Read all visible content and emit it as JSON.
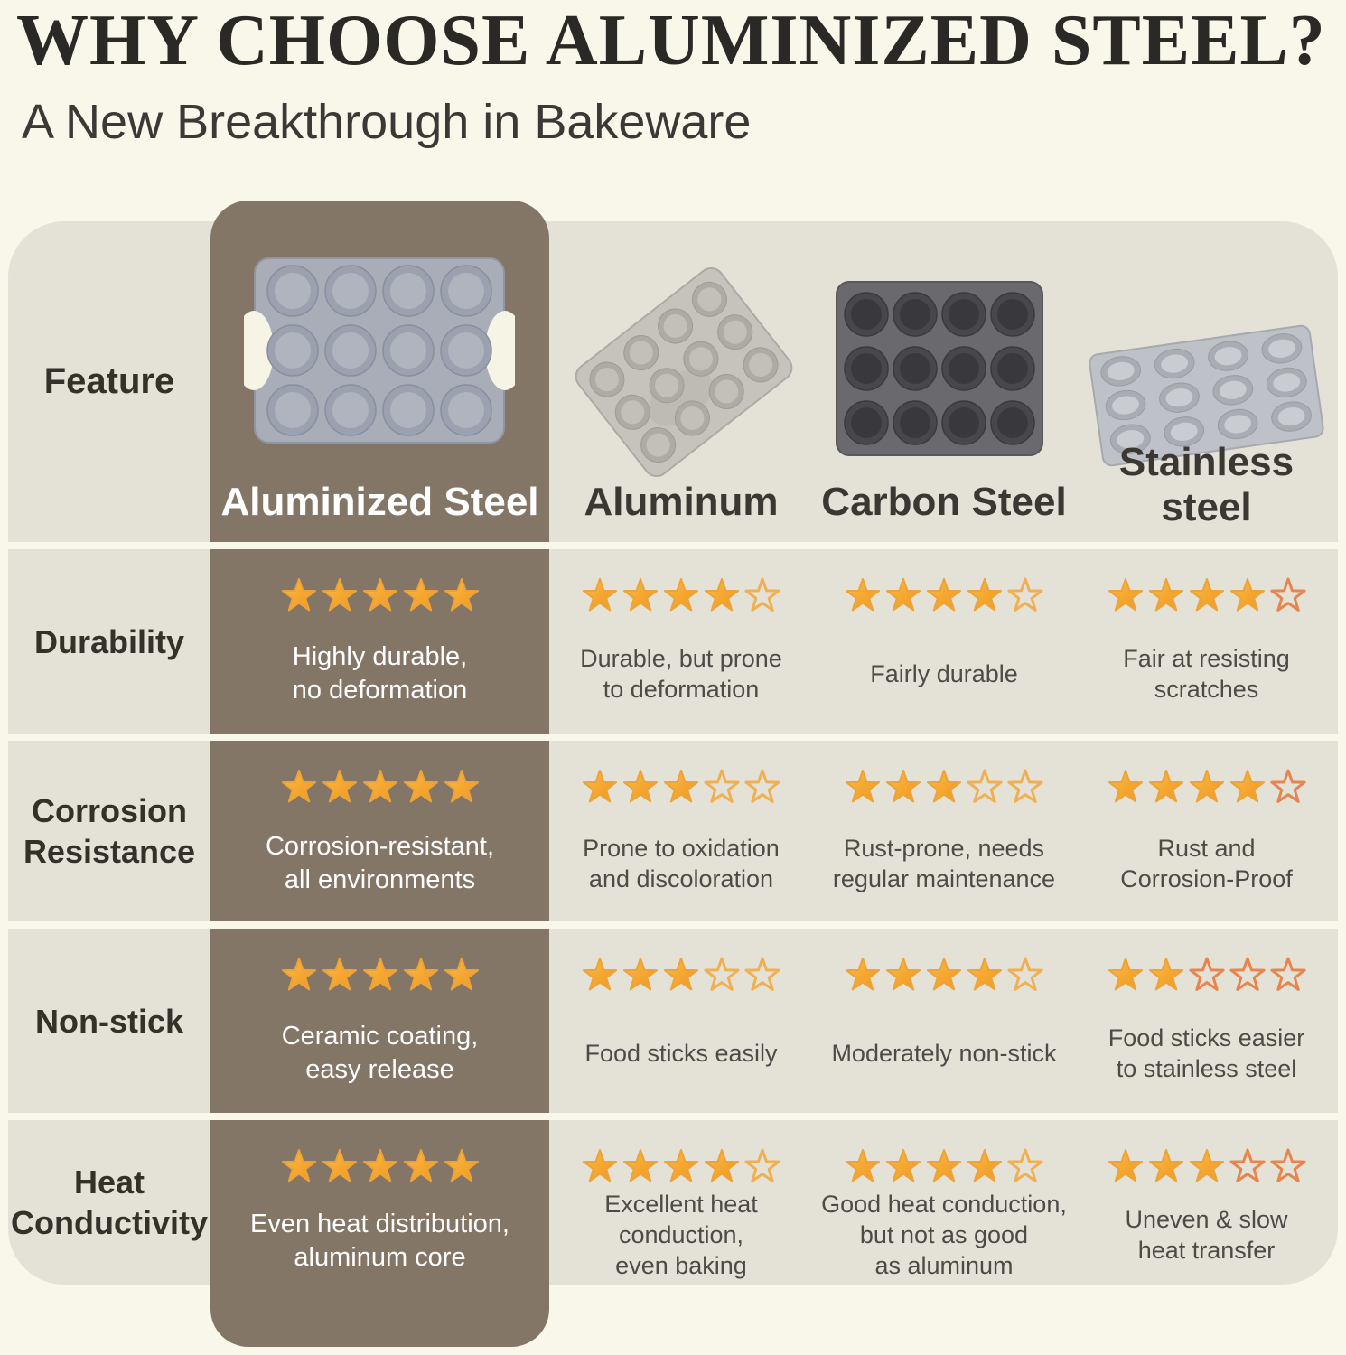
{
  "page": {
    "title": "WHY CHOOSE ALUMINIZED STEEL?",
    "subtitle": "A New Breakthrough in Bakeware"
  },
  "colors": {
    "background": "#F9F7E9",
    "row_band": "#E4E1D7",
    "highlight_column": "#847667",
    "title_text": "#2B2926",
    "body_text": "#4E4B47",
    "highlight_text": "#FFFFFF",
    "star_filled": "#F5A62F",
    "star_highlight": "#FBBE4B",
    "star_shadow": "#EE9A28",
    "star_edge": "#EDA335",
    "star_empty": "#F0B052",
    "star_empty_alt": "#E6854E"
  },
  "table": {
    "max_stars": 5,
    "feature_header": "Feature",
    "columns": [
      {
        "key": "aluminized_steel",
        "label": "Aluminized Steel",
        "highlight": true,
        "image": "aluminized-steel-muffin-pan"
      },
      {
        "key": "aluminum",
        "label": "Aluminum",
        "highlight": false,
        "image": "aluminum-muffin-pan"
      },
      {
        "key": "carbon_steel",
        "label": "Carbon Steel",
        "highlight": false,
        "image": "carbon-steel-muffin-pan"
      },
      {
        "key": "stainless_steel",
        "label": "Stainless\nsteel",
        "highlight": false,
        "image": "stainless-steel-muffin-pan"
      }
    ],
    "rows": [
      {
        "feature": "Durability",
        "cells": [
          {
            "stars": 5,
            "text": "Highly durable,\nno deformation"
          },
          {
            "stars": 4,
            "text": "Durable, but prone\nto deformation"
          },
          {
            "stars": 4,
            "text": "Fairly durable"
          },
          {
            "stars": 4,
            "text": "Fair at resisting\nscratches"
          }
        ]
      },
      {
        "feature": "Corrosion\nResistance",
        "cells": [
          {
            "stars": 5,
            "text": "Corrosion-resistant,\nall environments"
          },
          {
            "stars": 3,
            "text": "Prone to oxidation\nand discoloration"
          },
          {
            "stars": 3,
            "text": "Rust-prone, needs\nregular maintenance"
          },
          {
            "stars": 4,
            "text": "Rust and\nCorrosion-Proof"
          }
        ]
      },
      {
        "feature": "Non-stick",
        "cells": [
          {
            "stars": 5,
            "text": "Ceramic coating,\neasy release"
          },
          {
            "stars": 3,
            "text": "Food sticks easily"
          },
          {
            "stars": 4,
            "text": "Moderately non-stick"
          },
          {
            "stars": 2,
            "text": "Food sticks easier\nto stainless steel"
          }
        ]
      },
      {
        "feature": "Heat\nConductivity",
        "cells": [
          {
            "stars": 5,
            "text": "Even heat distribution,\naluminum core"
          },
          {
            "stars": 4,
            "text": "Excellent heat\nconduction,\neven baking"
          },
          {
            "stars": 4,
            "text": "Good heat conduction,\nbut not as good\nas aluminum"
          },
          {
            "stars": 3,
            "text": "Uneven & slow\nheat transfer"
          }
        ]
      }
    ]
  }
}
